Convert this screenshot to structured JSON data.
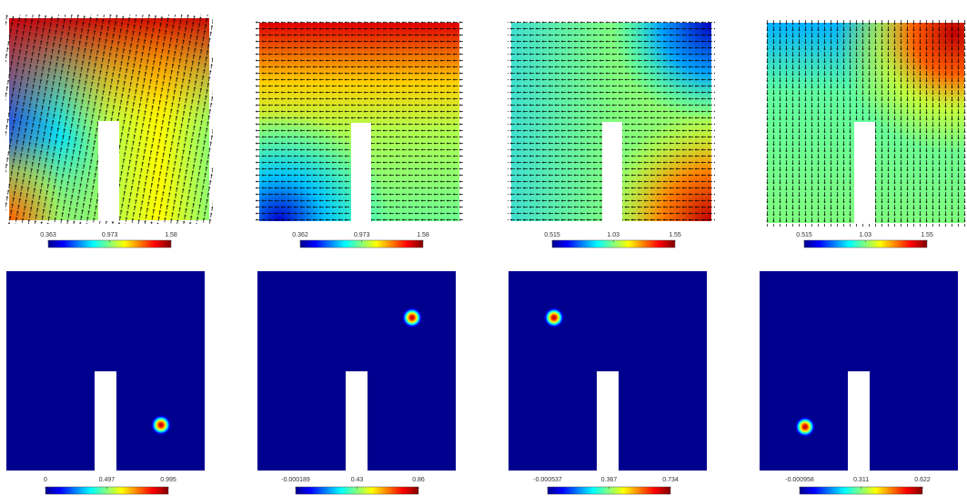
{
  "panels": [
    {
      "colorbar_ticks": [
        0.363,
        0.973,
        1.58
      ]
    },
    {
      "colorbar_ticks": [
        0.362,
        0.973,
        1.58
      ]
    },
    {
      "colorbar_ticks": [
        0.515,
        1.03,
        1.55
      ]
    },
    {
      "colorbar_ticks": [
        0.515,
        1.03,
        1.55
      ]
    },
    {
      "colorbar_ticks": [
        0,
        0.497,
        0.995
      ]
    },
    {
      "colorbar_ticks": [
        -0.000189,
        0.43,
        0.86
      ]
    },
    {
      "colorbar_ticks": [
        -0.000537,
        0.367,
        0.734
      ]
    },
    {
      "colorbar_ticks": [
        -0.000958,
        0.311,
        0.622
      ]
    }
  ]
}
